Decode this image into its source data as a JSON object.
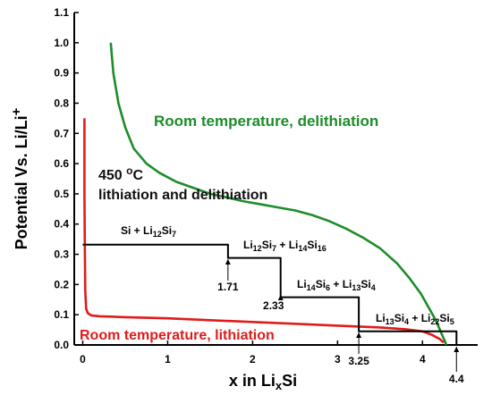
{
  "chart_data": {
    "type": "line",
    "xlabel": "x in LixSi",
    "ylabel": "Potential Vs. Li/Li+",
    "xlim": [
      -0.1,
      4.65
    ],
    "ylim": [
      0,
      1.1
    ],
    "xticks": [
      "0",
      "1",
      "2",
      "3",
      "4"
    ],
    "yticks": [
      "0.0",
      "0.1",
      "0.2",
      "0.3",
      "0.4",
      "0.5",
      "0.6",
      "0.7",
      "0.8",
      "0.9",
      "1.0",
      "1.1"
    ],
    "grid": false,
    "colors": {
      "delithiation": "#1e8c2a",
      "lithiation": "#e01b1b",
      "equilibrium": "#000000"
    },
    "series": [
      {
        "name": "Room temperature, delithiation",
        "key": "delithiation",
        "x": [
          0.33,
          0.36,
          0.42,
          0.5,
          0.6,
          0.75,
          0.9,
          1.1,
          1.3,
          1.5,
          1.7,
          1.9,
          2.1,
          2.3,
          2.5,
          2.7,
          2.9,
          3.1,
          3.3,
          3.5,
          3.7,
          3.85,
          3.98,
          4.08,
          4.16,
          4.22,
          4.26,
          4.28
        ],
        "y": [
          1.0,
          0.9,
          0.8,
          0.72,
          0.65,
          0.6,
          0.57,
          0.54,
          0.52,
          0.5,
          0.488,
          0.475,
          0.465,
          0.455,
          0.445,
          0.43,
          0.41,
          0.385,
          0.355,
          0.32,
          0.27,
          0.22,
          0.17,
          0.12,
          0.08,
          0.04,
          0.015,
          0.0
        ]
      },
      {
        "name": "Room temperature, lithiation",
        "key": "lithiation",
        "x": [
          0.02,
          0.02,
          0.025,
          0.03,
          0.04,
          0.06,
          0.1,
          0.2,
          0.5,
          1.0,
          1.5,
          2.0,
          2.5,
          3.0,
          3.5,
          3.8,
          4.0,
          4.1,
          4.2,
          4.25
        ],
        "y": [
          0.75,
          0.5,
          0.3,
          0.18,
          0.12,
          0.105,
          0.098,
          0.095,
          0.092,
          0.088,
          0.082,
          0.076,
          0.07,
          0.064,
          0.058,
          0.052,
          0.045,
          0.035,
          0.02,
          0.008
        ]
      },
      {
        "name": "450 oC lithiation and delithiation",
        "key": "equilibrium",
        "x": [
          0.0,
          1.71,
          1.71,
          2.33,
          2.33,
          3.25,
          3.25,
          4.4,
          4.4
        ],
        "y": [
          0.332,
          0.332,
          0.288,
          0.288,
          0.158,
          0.158,
          0.045,
          0.045,
          0.0
        ]
      }
    ],
    "annotations": [
      {
        "text": "Room temperature, delithiation",
        "key": "delithiation"
      },
      {
        "text": "Room temperature, lithiation",
        "key": "lithiation"
      },
      {
        "line1": "450 ",
        "sup": "o",
        "line1b": "C",
        "line2": "lithiation and delithiation",
        "key": "equilibrium"
      },
      {
        "phase_a": "Si + Li",
        "sub_a": "12",
        "phase_b": "Si",
        "sub_b": "7"
      },
      {
        "phase_a": "Li",
        "sub_a": "12",
        "phase_b": "Si",
        "sub_b": "7",
        "phase_c": " + Li",
        "sub_c": "14",
        "phase_d": "Si",
        "sub_d": "16"
      },
      {
        "phase_a": "Li",
        "sub_a": "14",
        "phase_b": "Si",
        "sub_b": "6",
        "phase_c": " + Li",
        "sub_c": "13",
        "phase_d": "Si",
        "sub_d": "4"
      },
      {
        "phase_a": "Li",
        "sub_a": "13",
        "phase_b": "Si",
        "sub_b": "4",
        "phase_c": " + Li",
        "sub_c": "22",
        "phase_d": "Si",
        "sub_d": "5"
      }
    ],
    "transition_labels": [
      {
        "x": 1.71,
        "text": "1.71"
      },
      {
        "x": 2.33,
        "text": "2.33"
      },
      {
        "x": 3.25,
        "text": "3.25"
      },
      {
        "x": 4.4,
        "text": "4.4"
      }
    ]
  }
}
